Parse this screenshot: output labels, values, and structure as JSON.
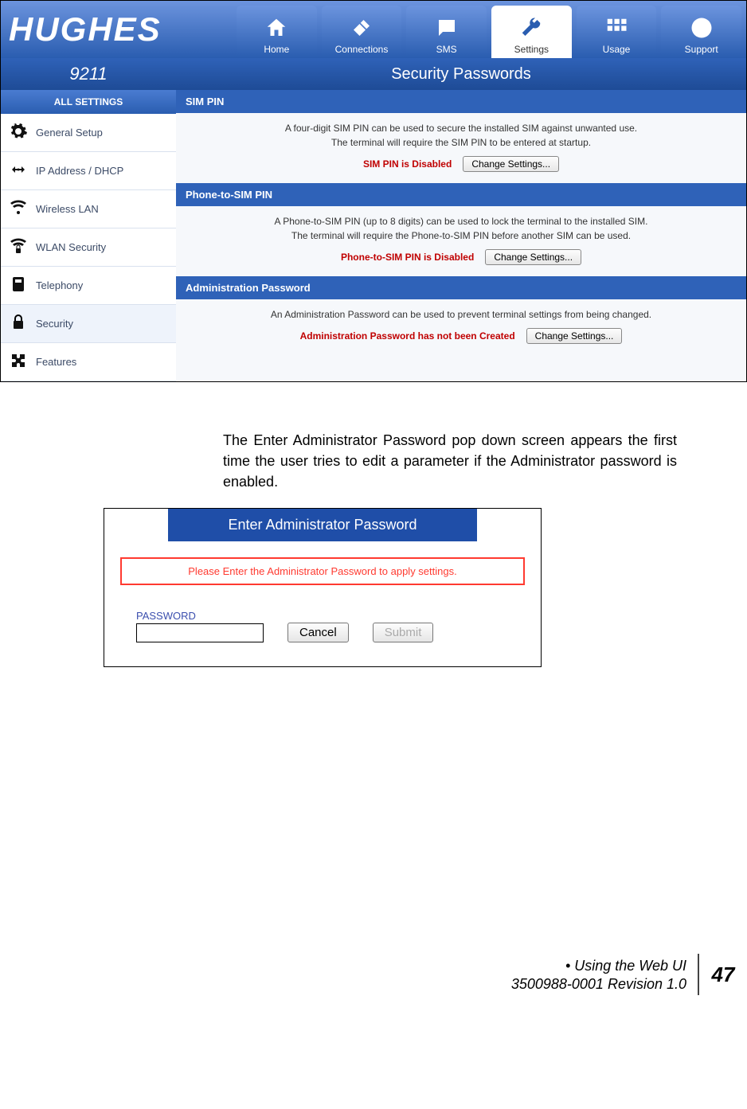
{
  "colors": {
    "brand_blue": "#2a5db0",
    "header_gradient_top": "#6c94de",
    "header_gradient_bottom": "#2a5db0",
    "subheader_gradient_top": "#2f62b8",
    "subheader_gradient_bottom": "#1e4b96",
    "section_header": "#2f62b8",
    "status_red": "#c00000",
    "warn_border": "#ff3a30",
    "popup_header": "#1f4ea8"
  },
  "brand": {
    "logo_text": "HUGHES",
    "model": "9211"
  },
  "tabs": [
    {
      "label": "Home",
      "icon": "home"
    },
    {
      "label": "Connections",
      "icon": "sat"
    },
    {
      "label": "SMS",
      "icon": "sms"
    },
    {
      "label": "Settings",
      "icon": "wrench",
      "active": true
    },
    {
      "label": "Usage",
      "icon": "grid"
    },
    {
      "label": "Support",
      "icon": "help"
    }
  ],
  "page_title": "Security Passwords",
  "sidebar": {
    "header": "ALL SETTINGS",
    "items": [
      {
        "label": "General Setup",
        "icon": "gear"
      },
      {
        "label": "IP Address / DHCP",
        "icon": "ip"
      },
      {
        "label": "Wireless LAN",
        "icon": "wlan"
      },
      {
        "label": "WLAN Security",
        "icon": "wlanlock"
      },
      {
        "label": "Telephony",
        "icon": "phone"
      },
      {
        "label": "Security",
        "icon": "lock",
        "selected": true
      },
      {
        "label": "Features",
        "icon": "puzzle"
      }
    ]
  },
  "sections": [
    {
      "header": "SIM PIN",
      "desc": "A four-digit SIM PIN can be used to secure the installed SIM against unwanted use.\nThe terminal will require the SIM PIN to be entered at startup.",
      "status": "SIM PIN is Disabled",
      "button": "Change Settings..."
    },
    {
      "header": "Phone-to-SIM PIN",
      "desc": "A Phone-to-SIM PIN (up to 8 digits) can be used to lock the terminal to the installed SIM.\nThe terminal will require the Phone-to-SIM PIN before another SIM can be used.",
      "status": "Phone-to-SIM PIN is Disabled",
      "button": "Change Settings..."
    },
    {
      "header": "Administration Password",
      "desc": "An Administration Password can be used to prevent terminal settings from being changed.",
      "status": "Administration Password has not been Created",
      "button": "Change Settings..."
    }
  ],
  "paragraph": "The Enter Administrator Password pop down screen appears the first time the user tries to edit a parameter if the Administrator password is enabled.",
  "popup": {
    "header": "Enter Administrator Password",
    "warning": "Please Enter the Administrator Password to apply settings.",
    "field_label": "PASSWORD",
    "cancel": "Cancel",
    "submit": "Submit"
  },
  "footer": {
    "line1": "• Using the Web UI",
    "line2": "3500988-0001  Revision 1.0",
    "page": "47"
  }
}
